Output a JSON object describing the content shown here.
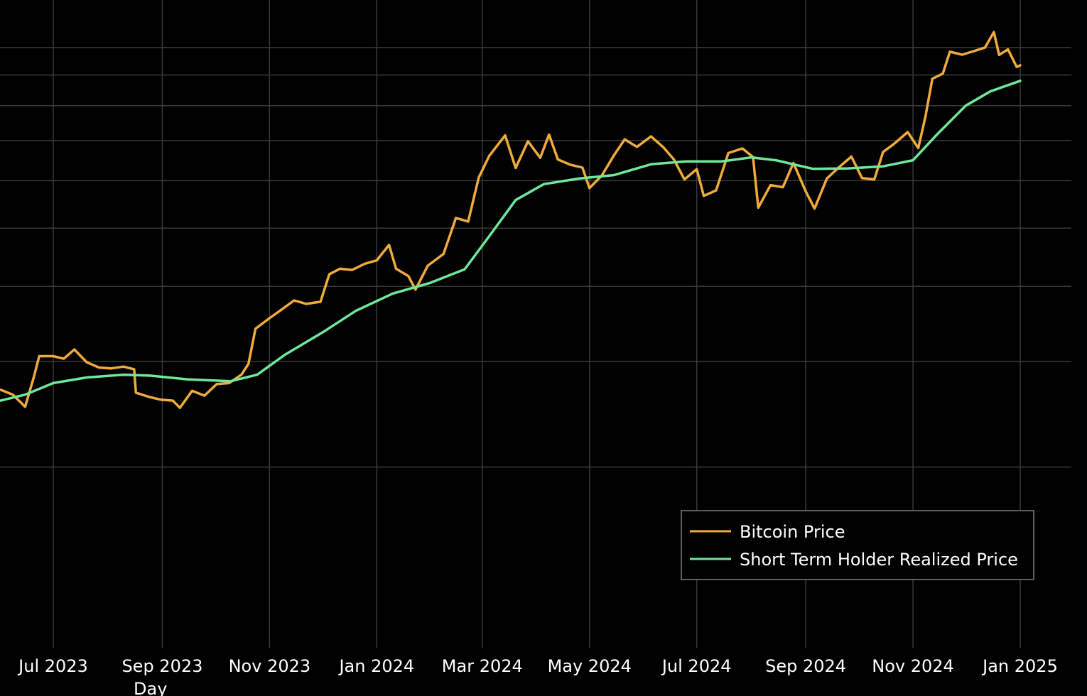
{
  "chart_data": {
    "type": "line",
    "title": "",
    "xlabel": "Day",
    "ylabel": "",
    "ylim": [
      10000,
      120000
    ],
    "y_scale": "log",
    "y_gridlines": [
      20000,
      30000,
      40000,
      50000,
      60000,
      70000,
      80000,
      90000,
      100000
    ],
    "grid": true,
    "legend_position": "bottom-right",
    "x_ticks": [
      {
        "date": "2023-07-01",
        "label": "Jul 2023"
      },
      {
        "date": "2023-09-01",
        "label": "Sep 2023"
      },
      {
        "date": "2023-11-01",
        "label": "Nov 2023"
      },
      {
        "date": "2024-01-01",
        "label": "Jan 2024"
      },
      {
        "date": "2024-03-01",
        "label": "Mar 2024"
      },
      {
        "date": "2024-05-01",
        "label": "May 2024"
      },
      {
        "date": "2024-07-01",
        "label": "Jul 2024"
      },
      {
        "date": "2024-09-01",
        "label": "Sep 2024"
      },
      {
        "date": "2024-11-01",
        "label": "Nov 2024"
      },
      {
        "date": "2025-01-01",
        "label": "Jan 2025"
      }
    ],
    "xlim": [
      "2023-06-01",
      "2025-01-30"
    ],
    "series": [
      {
        "name": "Bitcoin Price",
        "color": "#f0ab3c",
        "points": [
          [
            "2023-06-01",
            26900
          ],
          [
            "2023-06-08",
            26400
          ],
          [
            "2023-06-15",
            25200
          ],
          [
            "2023-06-20",
            28300
          ],
          [
            "2023-06-23",
            30600
          ],
          [
            "2023-07-01",
            30600
          ],
          [
            "2023-07-07",
            30300
          ],
          [
            "2023-07-13",
            31400
          ],
          [
            "2023-07-20",
            29900
          ],
          [
            "2023-07-27",
            29300
          ],
          [
            "2023-08-03",
            29200
          ],
          [
            "2023-08-10",
            29400
          ],
          [
            "2023-08-16",
            29100
          ],
          [
            "2023-08-17",
            26600
          ],
          [
            "2023-08-24",
            26200
          ],
          [
            "2023-08-31",
            25900
          ],
          [
            "2023-09-07",
            25800
          ],
          [
            "2023-09-11",
            25100
          ],
          [
            "2023-09-18",
            26800
          ],
          [
            "2023-09-25",
            26300
          ],
          [
            "2023-10-02",
            27500
          ],
          [
            "2023-10-09",
            27600
          ],
          [
            "2023-10-16",
            28500
          ],
          [
            "2023-10-20",
            29700
          ],
          [
            "2023-10-24",
            34000
          ],
          [
            "2023-11-01",
            35400
          ],
          [
            "2023-11-09",
            36800
          ],
          [
            "2023-11-15",
            37900
          ],
          [
            "2023-11-22",
            37400
          ],
          [
            "2023-11-30",
            37700
          ],
          [
            "2023-12-05",
            41900
          ],
          [
            "2023-12-11",
            42800
          ],
          [
            "2023-12-18",
            42600
          ],
          [
            "2023-12-25",
            43600
          ],
          [
            "2024-01-01",
            44200
          ],
          [
            "2024-01-08",
            46900
          ],
          [
            "2024-01-12",
            42800
          ],
          [
            "2024-01-19",
            41600
          ],
          [
            "2024-01-23",
            39500
          ],
          [
            "2024-01-30",
            43300
          ],
          [
            "2024-02-08",
            45300
          ],
          [
            "2024-02-15",
            52000
          ],
          [
            "2024-02-22",
            51300
          ],
          [
            "2024-02-28",
            60700
          ],
          [
            "2024-03-05",
            66000
          ],
          [
            "2024-03-14",
            71400
          ],
          [
            "2024-03-20",
            63000
          ],
          [
            "2024-03-27",
            69800
          ],
          [
            "2024-04-03",
            65500
          ],
          [
            "2024-04-08",
            71600
          ],
          [
            "2024-04-13",
            65100
          ],
          [
            "2024-04-20",
            63800
          ],
          [
            "2024-04-27",
            63100
          ],
          [
            "2024-05-01",
            58300
          ],
          [
            "2024-05-08",
            61200
          ],
          [
            "2024-05-15",
            66200
          ],
          [
            "2024-05-21",
            70300
          ],
          [
            "2024-05-28",
            68300
          ],
          [
            "2024-06-05",
            71100
          ],
          [
            "2024-06-12",
            68200
          ],
          [
            "2024-06-18",
            65100
          ],
          [
            "2024-06-24",
            60300
          ],
          [
            "2024-07-01",
            62700
          ],
          [
            "2024-07-05",
            56600
          ],
          [
            "2024-07-12",
            57800
          ],
          [
            "2024-07-19",
            66700
          ],
          [
            "2024-07-27",
            67900
          ],
          [
            "2024-08-02",
            65700
          ],
          [
            "2024-08-05",
            54100
          ],
          [
            "2024-08-12",
            59000
          ],
          [
            "2024-08-19",
            58500
          ],
          [
            "2024-08-25",
            64200
          ],
          [
            "2024-09-01",
            57600
          ],
          [
            "2024-09-06",
            53900
          ],
          [
            "2024-09-13",
            60500
          ],
          [
            "2024-09-20",
            63200
          ],
          [
            "2024-09-27",
            65800
          ],
          [
            "2024-10-03",
            60600
          ],
          [
            "2024-10-10",
            60300
          ],
          [
            "2024-10-15",
            67000
          ],
          [
            "2024-10-21",
            69000
          ],
          [
            "2024-10-29",
            72300
          ],
          [
            "2024-11-04",
            68000
          ],
          [
            "2024-11-08",
            76500
          ],
          [
            "2024-11-12",
            88700
          ],
          [
            "2024-11-18",
            90500
          ],
          [
            "2024-11-22",
            98400
          ],
          [
            "2024-11-29",
            97300
          ],
          [
            "2024-12-05",
            98500
          ],
          [
            "2024-12-12",
            100000
          ],
          [
            "2024-12-17",
            106100
          ],
          [
            "2024-12-20",
            97200
          ],
          [
            "2024-12-25",
            99300
          ],
          [
            "2024-12-30",
            92800
          ],
          [
            "2025-01-01",
            93400
          ]
        ]
      },
      {
        "name": "Short Term Holder Realized Price",
        "color": "#6ee89a",
        "points": [
          [
            "2023-06-01",
            25800
          ],
          [
            "2023-06-15",
            26400
          ],
          [
            "2023-07-01",
            27600
          ],
          [
            "2023-07-20",
            28200
          ],
          [
            "2023-08-10",
            28500
          ],
          [
            "2023-08-25",
            28400
          ],
          [
            "2023-09-15",
            28000
          ],
          [
            "2023-10-10",
            27800
          ],
          [
            "2023-10-25",
            28500
          ],
          [
            "2023-11-10",
            30800
          ],
          [
            "2023-12-01",
            33500
          ],
          [
            "2023-12-20",
            36400
          ],
          [
            "2024-01-10",
            38900
          ],
          [
            "2024-01-31",
            40500
          ],
          [
            "2024-02-20",
            42700
          ],
          [
            "2024-03-05",
            48500
          ],
          [
            "2024-03-20",
            55700
          ],
          [
            "2024-04-05",
            59200
          ],
          [
            "2024-04-25",
            60500
          ],
          [
            "2024-05-15",
            61300
          ],
          [
            "2024-06-05",
            63900
          ],
          [
            "2024-06-25",
            64600
          ],
          [
            "2024-07-15",
            64600
          ],
          [
            "2024-08-01",
            65600
          ],
          [
            "2024-08-15",
            64900
          ],
          [
            "2024-09-05",
            62800
          ],
          [
            "2024-09-25",
            62900
          ],
          [
            "2024-10-15",
            63400
          ],
          [
            "2024-11-01",
            64900
          ],
          [
            "2024-11-15",
            71800
          ],
          [
            "2024-12-01",
            80000
          ],
          [
            "2024-12-15",
            84500
          ],
          [
            "2025-01-01",
            88000
          ]
        ]
      }
    ]
  }
}
